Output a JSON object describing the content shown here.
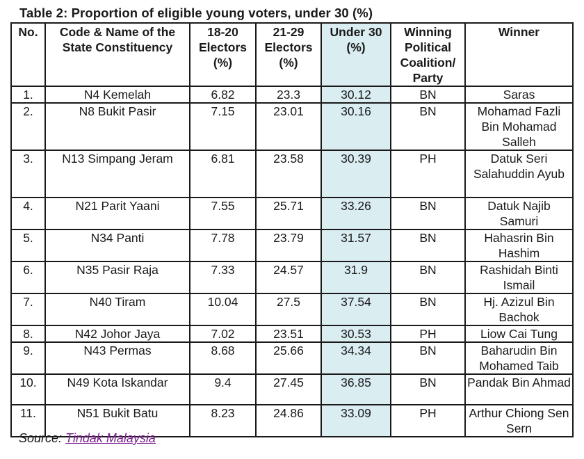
{
  "title": "Table 2: Proportion of eligible young voters, under 30 (%)",
  "colors": {
    "highlight_column": "#daedf1",
    "link": "#7b1f8f",
    "border": "#1a1a1a"
  },
  "table": {
    "headers": [
      "No.",
      "Code & Name of the State Constituency",
      "18-20 Electors (%)",
      "21-29 Electors (%)",
      "Under 30 (%)",
      "Winning Political Coalition/ Party",
      "Winner"
    ],
    "rows": [
      {
        "no": "1.",
        "constituency": "N4 Kemelah",
        "e18_20": "6.82",
        "e21_29": "23.3",
        "under30": "30.12",
        "party": "BN",
        "winner": "Saras"
      },
      {
        "no": "2.",
        "constituency": "N8 Bukit Pasir",
        "e18_20": "7.15",
        "e21_29": "23.01",
        "under30": "30.16",
        "party": "BN",
        "winner": "Mohamad Fazli Bin Mohamad Salleh"
      },
      {
        "no": "3.",
        "constituency": "N13 Simpang Jeram",
        "e18_20": "6.81",
        "e21_29": "23.58",
        "under30": "30.39",
        "party": "PH",
        "winner": "Datuk Seri Salahuddin Ayub"
      },
      {
        "no": "4.",
        "constituency": "N21 Parit Yaani",
        "e18_20": "7.55",
        "e21_29": "25.71",
        "under30": "33.26",
        "party": "BN",
        "winner": "Datuk Najib Samuri"
      },
      {
        "no": "5.",
        "constituency": "N34 Panti",
        "e18_20": "7.78",
        "e21_29": "23.79",
        "under30": "31.57",
        "party": "BN",
        "winner": "Hahasrin Bin Hashim"
      },
      {
        "no": "6.",
        "constituency": "N35 Pasir Raja",
        "e18_20": "7.33",
        "e21_29": "24.57",
        "under30": "31.9",
        "party": "BN",
        "winner": "Rashidah Binti Ismail"
      },
      {
        "no": "7.",
        "constituency": "N40 Tiram",
        "e18_20": "10.04",
        "e21_29": "27.5",
        "under30": "37.54",
        "party": "BN",
        "winner": "Hj. Azizul Bin Bachok"
      },
      {
        "no": "8.",
        "constituency": "N42 Johor Jaya",
        "e18_20": "7.02",
        "e21_29": "23.51",
        "under30": "30.53",
        "party": "PH",
        "winner": "Liow Cai Tung"
      },
      {
        "no": "9.",
        "constituency": "N43 Permas",
        "e18_20": "8.68",
        "e21_29": "25.66",
        "under30": "34.34",
        "party": "BN",
        "winner": "Baharudin Bin Mohamed Taib"
      },
      {
        "no": "10.",
        "constituency": "N49 Kota Iskandar",
        "e18_20": "9.4",
        "e21_29": "27.45",
        "under30": "36.85",
        "party": "BN",
        "winner": "Pandak Bin Ahmad"
      },
      {
        "no": "11.",
        "constituency": "N51 Bukit Batu",
        "e18_20": "8.23",
        "e21_29": "24.86",
        "under30": "33.09",
        "party": "PH",
        "winner": "Arthur Chiong Sen Sern"
      }
    ]
  },
  "source": {
    "label": "Source: ",
    "link_text": "Tindak Malaysia"
  }
}
